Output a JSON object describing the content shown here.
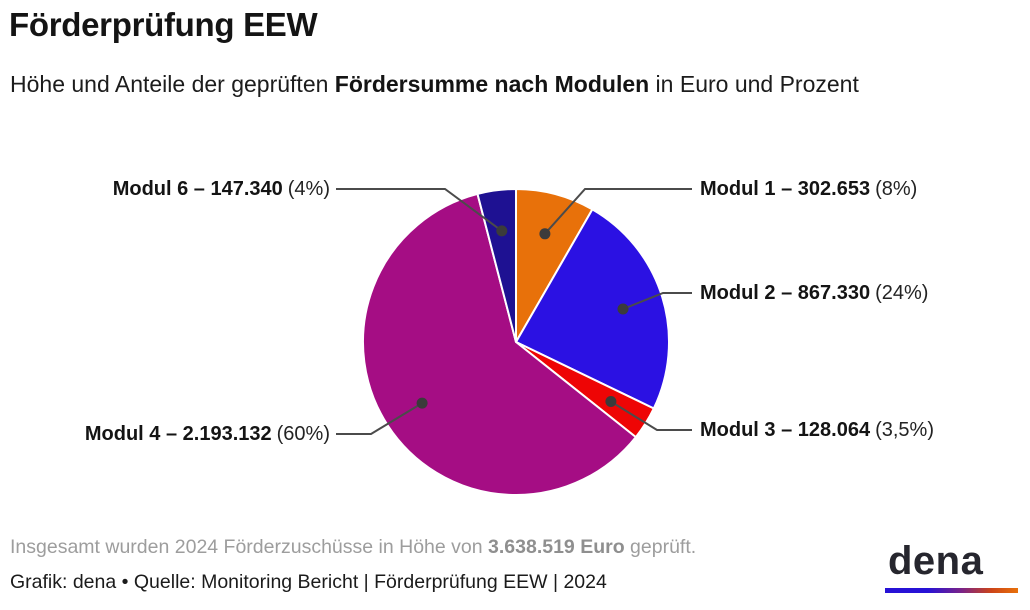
{
  "header": {
    "title": "Förderprüfung EEW",
    "subtitle_pre": "Höhe und Anteile der geprüften ",
    "subtitle_bold": "Fördersumme nach Modulen",
    "subtitle_post": " in Euro und Prozent"
  },
  "chart_data": {
    "type": "pie",
    "title": "Förderprüfung EEW – Fördersumme nach Modulen",
    "unit": "Euro",
    "total_value": 3638519,
    "total_display": "3.638.519",
    "start_angle_deg": 0,
    "direction": "clockwise",
    "legend_position": "callout-labels",
    "segments": [
      {
        "name": "Modul 1",
        "value": 302653,
        "value_display": "302.653",
        "pct": 8,
        "pct_display": "(8%)",
        "title_display": "Modul 1 – 302.653",
        "color": "#E8710A"
      },
      {
        "name": "Modul 2",
        "value": 867330,
        "value_display": "867.330",
        "pct": 24,
        "pct_display": "(24%)",
        "title_display": "Modul 2 – 867.330",
        "color": "#2B11E3"
      },
      {
        "name": "Modul 3",
        "value": 128064,
        "value_display": "128.064",
        "pct": 3.5,
        "pct_display": "(3,5%)",
        "title_display": "Modul 3 – 128.064",
        "color": "#EE0505"
      },
      {
        "name": "Modul 4",
        "value": 2193132,
        "value_display": "2.193.132",
        "pct": 60,
        "pct_display": "(60%)",
        "title_display": "Modul 4 – 2.193.132",
        "color": "#A50D84"
      },
      {
        "name": "Modul 6",
        "value": 147340,
        "value_display": "147.340",
        "pct": 4,
        "pct_display": "(4%)",
        "title_display": "Modul 6 – 147.340",
        "color": "#1E1192"
      }
    ],
    "leader_line_color": "#4B4B4B",
    "marker_color": "#3B3B3B",
    "slice_stroke_color": "#FFFFFF"
  },
  "footer": {
    "note_pre": "Insgesamt wurden 2024 Förderzuschüsse in Höhe von ",
    "note_bold": "3.638.519 Euro",
    "note_post": " geprüft.",
    "credit": "Grafik: dena • Quelle: Monitoring Bericht | Förderprüfung EEW | 2024"
  },
  "logo": {
    "text": "dena",
    "gradient_stops": [
      "#2712D6",
      "#7C2386",
      "#CC4418",
      "#E8710A"
    ]
  }
}
